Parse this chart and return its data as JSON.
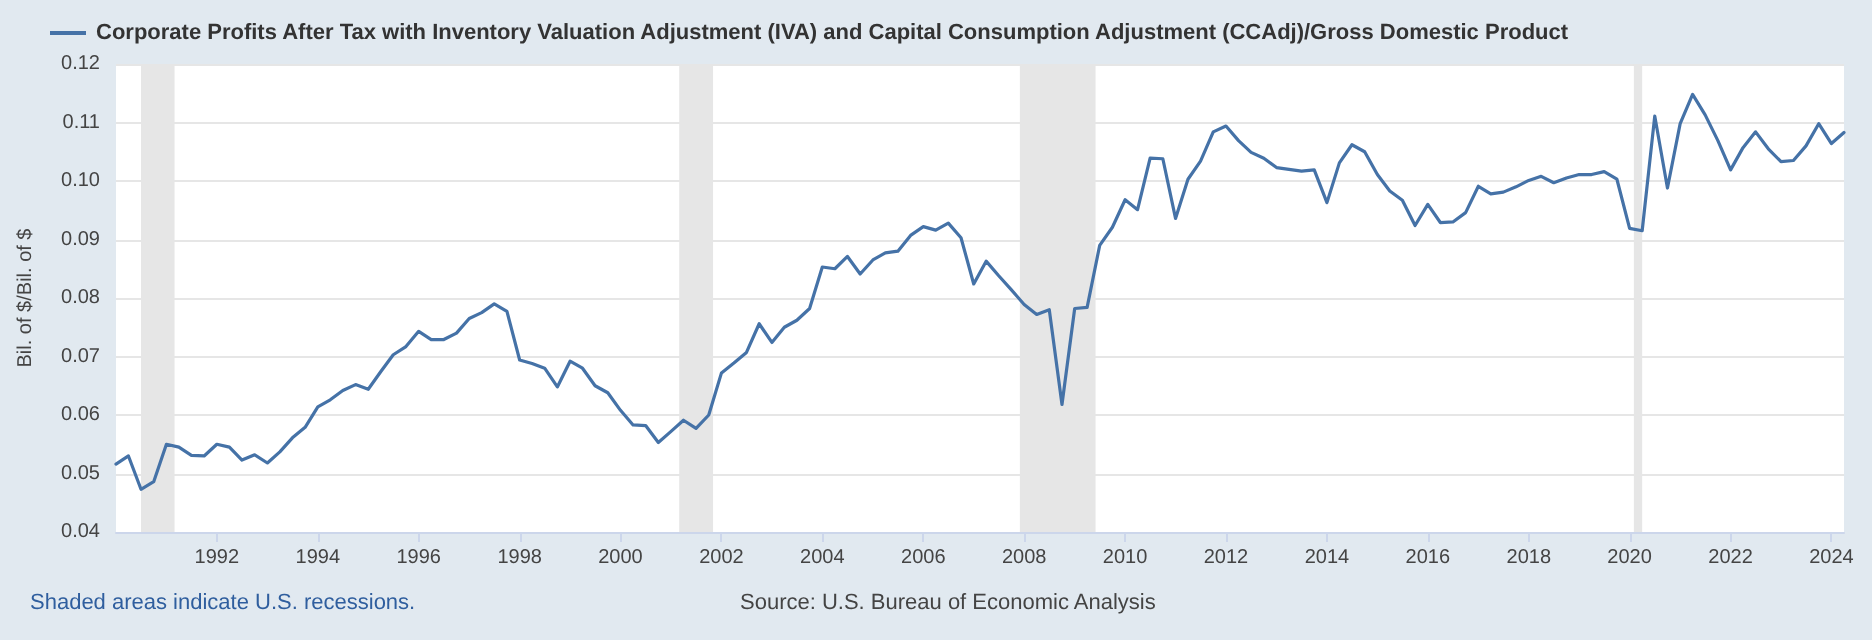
{
  "chart_data": {
    "type": "line",
    "ylabel": "Bil. of $/Bil. of $",
    "legend": "top left",
    "grid": "y",
    "marker": "none",
    "line_style": "solid",
    "annotations": [
      "Shaded areas indicate U.S. recessions.",
      "Source: U.S. Bureau of Economic Analysis"
    ],
    "xlim": [
      "1990-01-01",
      "2024-04-01"
    ],
    "xticks": [
      "1992",
      "1994",
      "1996",
      "1998",
      "2000",
      "2002",
      "2004",
      "2006",
      "2008",
      "2010",
      "2012",
      "2014",
      "2016",
      "2018",
      "2020",
      "2022",
      "2024"
    ],
    "ylim": [
      0.04,
      0.12
    ],
    "yticks": [
      0.04,
      0.05,
      0.06,
      0.07,
      0.08,
      0.09,
      {
        "value": 0.1,
        "label": "0.10"
      },
      0.11,
      0.12
    ],
    "bands": [
      {
        "axis": "x",
        "from": "1990-07-01",
        "to": "1991-03-01",
        "color": "#e6e6e6"
      },
      {
        "axis": "x",
        "from": "2001-03-01",
        "to": "2001-11-01",
        "color": "#e6e6e6"
      },
      {
        "axis": "x",
        "from": "2007-12-01",
        "to": "2009-06-01",
        "color": "#e6e6e6"
      },
      {
        "axis": "x",
        "from": "2020-02-01",
        "to": "2020-04-01",
        "color": "#e6e6e6"
      }
    ],
    "series": [
      {
        "name": "Corporate Profits After Tax with Inventory Valuation Adjustment (IVA) and Capital Consumption Adjustment (CCAdj)/Gross Domestic Product",
        "color": "#4572a7",
        "x": [
          "1990-01",
          "1990-04",
          "1990-07",
          "1990-10",
          "1991-01",
          "1991-04",
          "1991-07",
          "1991-10",
          "1992-01",
          "1992-04",
          "1992-07",
          "1992-10",
          "1993-01",
          "1993-04",
          "1993-07",
          "1993-10",
          "1994-01",
          "1994-04",
          "1994-07",
          "1994-10",
          "1995-01",
          "1995-04",
          "1995-07",
          "1995-10",
          "1996-01",
          "1996-04",
          "1996-07",
          "1996-10",
          "1997-01",
          "1997-04",
          "1997-07",
          "1997-10",
          "1998-01",
          "1998-04",
          "1998-07",
          "1998-10",
          "1999-01",
          "1999-04",
          "1999-07",
          "1999-10",
          "2000-01",
          "2000-04",
          "2000-07",
          "2000-10",
          "2001-01",
          "2001-04",
          "2001-07",
          "2001-10",
          "2002-01",
          "2002-04",
          "2002-07",
          "2002-10",
          "2003-01",
          "2003-04",
          "2003-07",
          "2003-10",
          "2004-01",
          "2004-04",
          "2004-07",
          "2004-10",
          "2005-01",
          "2005-04",
          "2005-07",
          "2005-10",
          "2006-01",
          "2006-04",
          "2006-07",
          "2006-10",
          "2007-01",
          "2007-04",
          "2007-07",
          "2007-10",
          "2008-01",
          "2008-04",
          "2008-07",
          "2008-10",
          "2009-01",
          "2009-04",
          "2009-07",
          "2009-10",
          "2010-01",
          "2010-04",
          "2010-07",
          "2010-10",
          "2011-01",
          "2011-04",
          "2011-07",
          "2011-10",
          "2012-01",
          "2012-04",
          "2012-07",
          "2012-10",
          "2013-01",
          "2013-04",
          "2013-07",
          "2013-10",
          "2014-01",
          "2014-04",
          "2014-07",
          "2014-10",
          "2015-01",
          "2015-04",
          "2015-07",
          "2015-10",
          "2016-01",
          "2016-04",
          "2016-07",
          "2016-10",
          "2017-01",
          "2017-04",
          "2017-07",
          "2017-10",
          "2018-01",
          "2018-04",
          "2018-07",
          "2018-10",
          "2019-01",
          "2019-04",
          "2019-07",
          "2019-10",
          "2020-01",
          "2020-04",
          "2020-07",
          "2020-10",
          "2021-01",
          "2021-04",
          "2021-07",
          "2021-10",
          "2022-01",
          "2022-04",
          "2022-07",
          "2022-10",
          "2023-01",
          "2023-04",
          "2023-07",
          "2023-10",
          "2024-01",
          "2024-04"
        ],
        "values": [
          0.0516,
          0.053,
          0.0473,
          0.0486,
          0.055,
          0.0545,
          0.0531,
          0.053,
          0.055,
          0.0545,
          0.0523,
          0.0532,
          0.0518,
          0.0537,
          0.0561,
          0.0579,
          0.0614,
          0.0626,
          0.0642,
          0.0652,
          0.0644,
          0.0674,
          0.0703,
          0.0717,
          0.0743,
          0.0729,
          0.0729,
          0.074,
          0.0765,
          0.0775,
          0.079,
          0.0777,
          0.0694,
          0.0688,
          0.068,
          0.0648,
          0.0692,
          0.068,
          0.065,
          0.0638,
          0.0608,
          0.0583,
          0.0582,
          0.0553,
          0.0572,
          0.0591,
          0.0577,
          0.06,
          0.0672,
          0.0689,
          0.0707,
          0.0756,
          0.0724,
          0.075,
          0.0762,
          0.0782,
          0.0853,
          0.085,
          0.0871,
          0.0841,
          0.0865,
          0.0877,
          0.088,
          0.0907,
          0.0922,
          0.0916,
          0.0928,
          0.0903,
          0.0824,
          0.0863,
          0.0838,
          0.0814,
          0.0789,
          0.0772,
          0.078,
          0.0618,
          0.0782,
          0.0784,
          0.089,
          0.0921,
          0.0968,
          0.0951,
          0.1039,
          0.1038,
          0.0936,
          0.1003,
          0.1034,
          0.1084,
          0.1094,
          0.1069,
          0.1049,
          0.1039,
          0.1023,
          0.102,
          0.1017,
          0.1019,
          0.0963,
          0.1031,
          0.1062,
          0.105,
          0.1011,
          0.0983,
          0.0967,
          0.0924,
          0.096,
          0.0929,
          0.093,
          0.0946,
          0.0991,
          0.0978,
          0.0981,
          0.099,
          0.1001,
          0.1008,
          0.0997,
          0.1005,
          0.1011,
          0.1011,
          0.1016,
          0.1003,
          0.0919,
          0.0915,
          0.1111,
          0.0988,
          0.1098,
          0.1148,
          0.1113,
          0.1069,
          0.1019,
          0.1057,
          0.1084,
          0.1055,
          0.1033,
          0.1035,
          0.106,
          0.1098,
          0.1064,
          0.1083
        ]
      }
    ]
  }
}
